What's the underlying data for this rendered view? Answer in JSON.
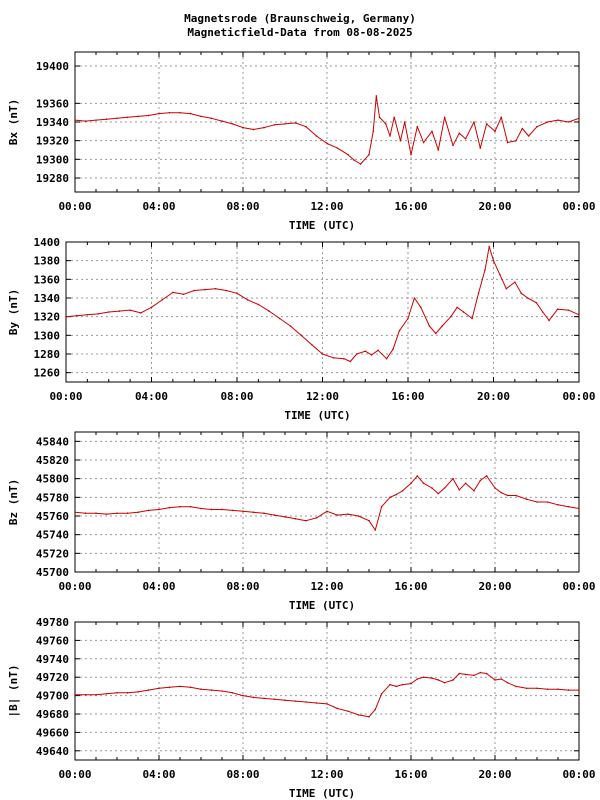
{
  "header": {
    "title_line1": "Magnetsrode (Braunschweig, Germany)",
    "title_line2": "Magneticfield-Data from 08-08-2025"
  },
  "colors": {
    "trace": "#cc0000",
    "grid": "#999999",
    "frame": "#000000"
  },
  "chart_data": [
    {
      "type": "line",
      "ylabel": "Bx (nT)",
      "xlabel": "TIME (UTC)",
      "xticks": [
        "00:00",
        "04:00",
        "08:00",
        "12:00",
        "16:00",
        "20:00",
        "00:00"
      ],
      "xlim": [
        0,
        24
      ],
      "ylim": [
        19265,
        19415
      ],
      "yticks": [
        19280,
        19300,
        19320,
        19340,
        19360,
        19400
      ],
      "grid": true,
      "series": [
        {
          "x": [
            0,
            0.5,
            1,
            1.5,
            2,
            2.5,
            3,
            3.5,
            4,
            4.5,
            5,
            5.5,
            6,
            6.5,
            7,
            7.5,
            8,
            8.5,
            9,
            9.5,
            10,
            10.5,
            11,
            11.5,
            12,
            12.5,
            13,
            13.3,
            13.6,
            14,
            14.2,
            14.35,
            14.5,
            14.8,
            15,
            15.2,
            15.5,
            15.7,
            16,
            16.3,
            16.6,
            17,
            17.3,
            17.6,
            18,
            18.3,
            18.6,
            19,
            19.3,
            19.6,
            20,
            20.3,
            20.6,
            21,
            21.3,
            21.6,
            22,
            22.5,
            23,
            23.5,
            24
          ],
          "y": [
            19342,
            19341,
            19342,
            19343,
            19344,
            19345,
            19346,
            19347,
            19349,
            19350,
            19350,
            19349,
            19346,
            19344,
            19341,
            19338,
            19334,
            19332,
            19334,
            19337,
            19338,
            19339,
            19335,
            19325,
            19317,
            19312,
            19305,
            19299,
            19295,
            19305,
            19330,
            19368,
            19345,
            19338,
            19325,
            19345,
            19320,
            19340,
            19305,
            19335,
            19318,
            19330,
            19310,
            19345,
            19315,
            19328,
            19322,
            19340,
            19312,
            19338,
            19330,
            19345,
            19318,
            19320,
            19333,
            19325,
            19335,
            19340,
            19342,
            19340,
            19344
          ]
        }
      ]
    },
    {
      "type": "line",
      "ylabel": "By (nT)",
      "xlabel": "TIME (UTC)",
      "xticks": [
        "00:00",
        "04:00",
        "08:00",
        "12:00",
        "16:00",
        "20:00",
        "00:00"
      ],
      "xlim": [
        0,
        24
      ],
      "ylim": [
        1250,
        1400
      ],
      "yticks": [
        1260,
        1280,
        1300,
        1320,
        1340,
        1360,
        1380,
        1400
      ],
      "grid": true,
      "series": [
        {
          "x": [
            0,
            0.5,
            1,
            1.5,
            2,
            2.5,
            3,
            3.5,
            4,
            4.5,
            5,
            5.5,
            6,
            6.5,
            7,
            7.5,
            8,
            8.5,
            9,
            9.5,
            10,
            10.5,
            11,
            11.5,
            12,
            12.5,
            13,
            13.3,
            13.6,
            14,
            14.3,
            14.6,
            15,
            15.3,
            15.6,
            16,
            16.3,
            16.6,
            17,
            17.3,
            17.6,
            18,
            18.3,
            18.6,
            19,
            19.3,
            19.6,
            19.8,
            20,
            20.3,
            20.6,
            21,
            21.3,
            21.6,
            22,
            22.3,
            22.6,
            23,
            23.5,
            24
          ],
          "y": [
            1320,
            1321,
            1322,
            1323,
            1325,
            1326,
            1327,
            1324,
            1330,
            1338,
            1346,
            1344,
            1348,
            1349,
            1350,
            1348,
            1345,
            1338,
            1333,
            1326,
            1318,
            1310,
            1300,
            1290,
            1280,
            1276,
            1275,
            1272,
            1280,
            1283,
            1279,
            1284,
            1275,
            1285,
            1305,
            1318,
            1340,
            1330,
            1310,
            1302,
            1310,
            1320,
            1330,
            1325,
            1318,
            1345,
            1370,
            1395,
            1380,
            1365,
            1350,
            1357,
            1345,
            1340,
            1335,
            1325,
            1316,
            1328,
            1327,
            1322
          ]
        }
      ]
    },
    {
      "type": "line",
      "ylabel": "Bz (nT)",
      "xlabel": "TIME (UTC)",
      "xticks": [
        "00:00",
        "04:00",
        "08:00",
        "12:00",
        "16:00",
        "20:00",
        "00:00"
      ],
      "xlim": [
        0,
        24
      ],
      "ylim": [
        45700,
        45850
      ],
      "yticks": [
        45700,
        45720,
        45740,
        45760,
        45780,
        45800,
        45820,
        45840
      ],
      "grid": true,
      "series": [
        {
          "x": [
            0,
            0.5,
            1,
            1.5,
            2,
            2.5,
            3,
            3.5,
            4,
            4.5,
            5,
            5.5,
            6,
            6.5,
            7,
            7.5,
            8,
            8.5,
            9,
            9.5,
            10,
            10.5,
            11,
            11.5,
            12,
            12.5,
            13,
            13.5,
            14,
            14.3,
            14.6,
            15,
            15.3,
            15.6,
            16,
            16.3,
            16.6,
            17,
            17.3,
            17.6,
            18,
            18.3,
            18.6,
            19,
            19.3,
            19.6,
            20,
            20.3,
            20.6,
            21,
            21.5,
            22,
            22.5,
            23,
            23.5,
            24
          ],
          "y": [
            45764,
            45763,
            45763,
            45762,
            45763,
            45763,
            45764,
            45766,
            45767,
            45769,
            45770,
            45770,
            45768,
            45767,
            45767,
            45766,
            45765,
            45764,
            45763,
            45761,
            45759,
            45757,
            45755,
            45758,
            45765,
            45761,
            45762,
            45760,
            45755,
            45745,
            45770,
            45780,
            45783,
            45787,
            45795,
            45803,
            45795,
            45790,
            45784,
            45790,
            45800,
            45788,
            45795,
            45787,
            45798,
            45803,
            45790,
            45785,
            45782,
            45782,
            45778,
            45775,
            45775,
            45772,
            45770,
            45768
          ]
        }
      ]
    },
    {
      "type": "line",
      "ylabel": "|B| (nT)",
      "xlabel": "TIME (UTC)",
      "xticks": [
        "00:00",
        "04:00",
        "08:00",
        "12:00",
        "16:00",
        "20:00",
        "00:00"
      ],
      "xlim": [
        0,
        24
      ],
      "ylim": [
        49630,
        49780
      ],
      "yticks": [
        49640,
        49660,
        49680,
        49700,
        49720,
        49740,
        49760,
        49780
      ],
      "grid": true,
      "series": [
        {
          "x": [
            0,
            0.5,
            1,
            1.5,
            2,
            2.5,
            3,
            3.5,
            4,
            4.5,
            5,
            5.5,
            6,
            6.5,
            7,
            7.5,
            8,
            8.5,
            9,
            9.5,
            10,
            10.5,
            11,
            11.5,
            12,
            12.5,
            13,
            13.5,
            14,
            14.3,
            14.6,
            15,
            15.3,
            15.6,
            16,
            16.3,
            16.6,
            17,
            17.3,
            17.6,
            18,
            18.3,
            18.6,
            19,
            19.3,
            19.6,
            20,
            20.3,
            20.6,
            21,
            21.5,
            22,
            22.5,
            23,
            23.5,
            24
          ],
          "y": [
            49701,
            49701,
            49701,
            49702,
            49703,
            49703,
            49704,
            49706,
            49708,
            49709,
            49710,
            49709,
            49707,
            49706,
            49705,
            49703,
            49700,
            49698,
            49697,
            49696,
            49695,
            49694,
            49693,
            49692,
            49691,
            49686,
            49683,
            49679,
            49677,
            49685,
            49702,
            49712,
            49710,
            49712,
            49713,
            49718,
            49720,
            49719,
            49717,
            49714,
            49717,
            49724,
            49723,
            49722,
            49725,
            49724,
            49717,
            49718,
            49714,
            49710,
            49708,
            49708,
            49707,
            49707,
            49706,
            49706
          ]
        }
      ]
    }
  ]
}
